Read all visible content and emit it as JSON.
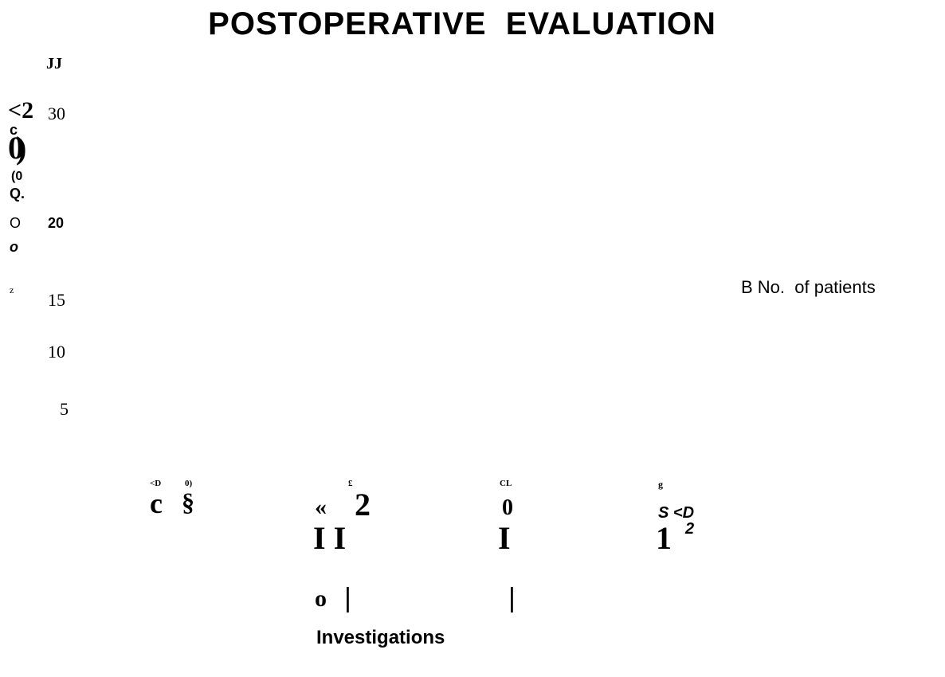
{
  "title": "POSTOPERATIVE  EVALUATION",
  "y_axis_fragments": [
    "JJ",
    "<2",
    "c",
    "0)",
    "(0",
    "Q.",
    "O",
    "o",
    "z"
  ],
  "y_ticks": [
    "30",
    "20",
    "15",
    "10",
    "5"
  ],
  "legend": "B No.  of patients",
  "x_label_fragments": [
    "<D",
    "0)",
    "c",
    "§",
    "£",
    "«",
    "2",
    "CL",
    "0",
    "g",
    "S <D",
    "I I",
    "I",
    "1",
    "2",
    "o",
    "|",
    "|"
  ],
  "x_axis_title": "Investigations"
}
